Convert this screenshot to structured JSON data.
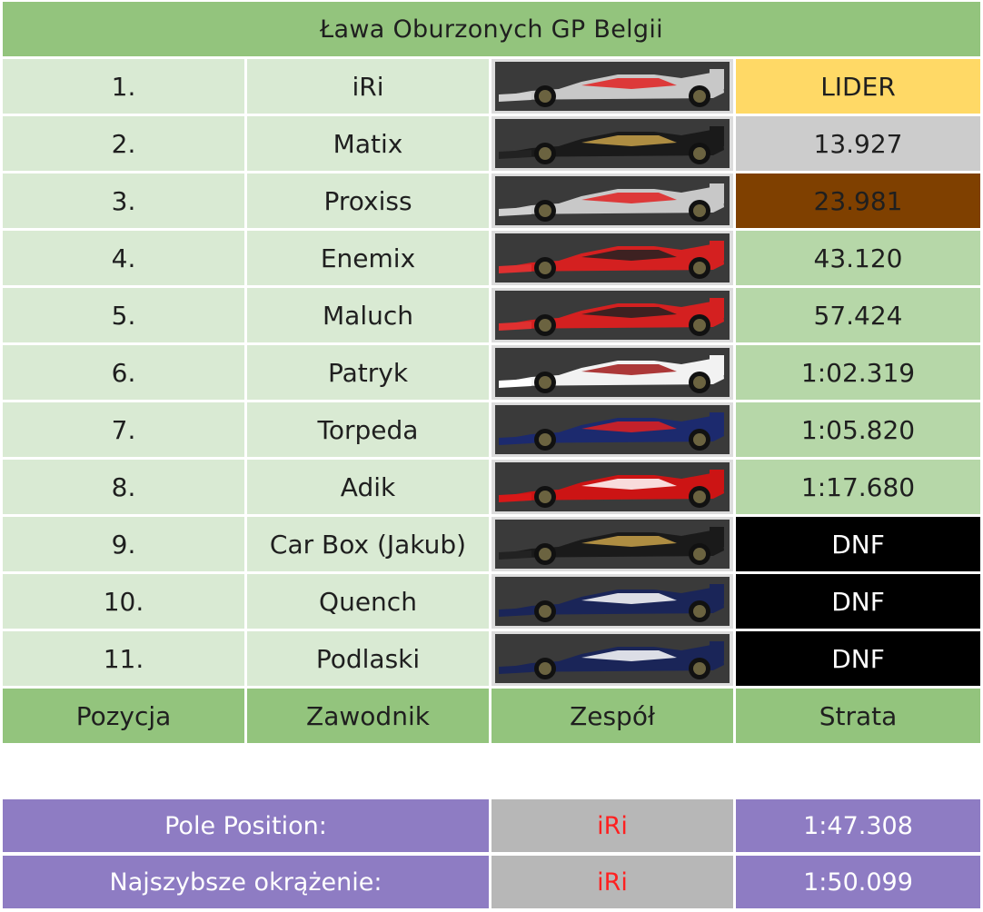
{
  "title": "Ława Oburzonych GP Belgii",
  "rows": [
    {
      "pos": "1.",
      "name": "iRi",
      "team_icon": "mclaren-car-icon",
      "car": {
        "body": "#c8c8c8",
        "accent": "#e02020",
        "nose": "#d0d0d0"
      },
      "gap": "LIDER",
      "gap_bg": "#ffd966",
      "gap_color": "#1f1f1f"
    },
    {
      "pos": "2.",
      "name": "Matix",
      "team_icon": "lotus-car-icon",
      "car": {
        "body": "#1a1a1a",
        "accent": "#c9a24a",
        "nose": "#222222"
      },
      "gap": "13.927",
      "gap_bg": "#cccccc",
      "gap_color": "#1f1f1f"
    },
    {
      "pos": "3.",
      "name": "Proxiss",
      "team_icon": "mclaren-car-icon",
      "car": {
        "body": "#c8c8c8",
        "accent": "#e02020",
        "nose": "#d0d0d0"
      },
      "gap": "23.981",
      "gap_bg": "#7f4000",
      "gap_color": "#1f1f1f"
    },
    {
      "pos": "4.",
      "name": "Enemix",
      "team_icon": "marussia-car-icon",
      "car": {
        "body": "#d42020",
        "accent": "#222222",
        "nose": "#e03030"
      },
      "gap": "43.120",
      "gap_bg": "#b6d7a8",
      "gap_color": "#1f1f1f"
    },
    {
      "pos": "5.",
      "name": "Maluch",
      "team_icon": "marussia-car-icon",
      "car": {
        "body": "#d42020",
        "accent": "#222222",
        "nose": "#e03030"
      },
      "gap": "57.424",
      "gap_bg": "#b6d7a8",
      "gap_color": "#1f1f1f"
    },
    {
      "pos": "6.",
      "name": "Patryk",
      "team_icon": "hrt-car-icon",
      "car": {
        "body": "#f2f2f2",
        "accent": "#a01818",
        "nose": "#ffffff"
      },
      "gap": "1:02.319",
      "gap_bg": "#b6d7a8",
      "gap_color": "#1f1f1f"
    },
    {
      "pos": "7.",
      "name": "Torpeda",
      "team_icon": "redbull-car-icon",
      "car": {
        "body": "#1c2a6e",
        "accent": "#e02020",
        "nose": "#1c2a6e"
      },
      "gap": "1:05.820",
      "gap_bg": "#b6d7a8",
      "gap_color": "#1f1f1f"
    },
    {
      "pos": "8.",
      "name": "Adik",
      "team_icon": "ferrari-car-icon",
      "car": {
        "body": "#cc1414",
        "accent": "#ffffff",
        "nose": "#d81818"
      },
      "gap": "1:17.680",
      "gap_bg": "#b6d7a8",
      "gap_color": "#1f1f1f"
    },
    {
      "pos": "9.",
      "name": "Car Box (Jakub)",
      "team_icon": "lotus-car-icon",
      "car": {
        "body": "#1a1a1a",
        "accent": "#c9a24a",
        "nose": "#222222"
      },
      "gap": "DNF",
      "gap_bg": "#000000",
      "gap_color": "#ffffff"
    },
    {
      "pos": "10.",
      "name": "Quench",
      "team_icon": "williams-car-icon",
      "car": {
        "body": "#1a2558",
        "accent": "#ffffff",
        "nose": "#1a2558"
      },
      "gap": "DNF",
      "gap_bg": "#000000",
      "gap_color": "#ffffff"
    },
    {
      "pos": "11.",
      "name": "Podlaski",
      "team_icon": "williams-car-icon",
      "car": {
        "body": "#1a2558",
        "accent": "#ffffff",
        "nose": "#1a2558"
      },
      "gap": "DNF",
      "gap_bg": "#000000",
      "gap_color": "#ffffff"
    }
  ],
  "footer": {
    "position": "Pozycja",
    "driver": "Zawodnik",
    "team": "Zespół",
    "gap": "Strata"
  },
  "stats": [
    {
      "label": "Pole Position:",
      "driver": "iRi",
      "time": "1:47.308"
    },
    {
      "label": "Najszybsze okrążenie:",
      "driver": "iRi",
      "time": "1:50.099"
    }
  ],
  "colors": {
    "header_green": "#93c47d",
    "light_green": "#d9ead3",
    "mid_green": "#b6d7a8",
    "leader_yellow": "#ffd966",
    "purple": "#8e7cc3",
    "highlight_red": "#ff2020"
  }
}
